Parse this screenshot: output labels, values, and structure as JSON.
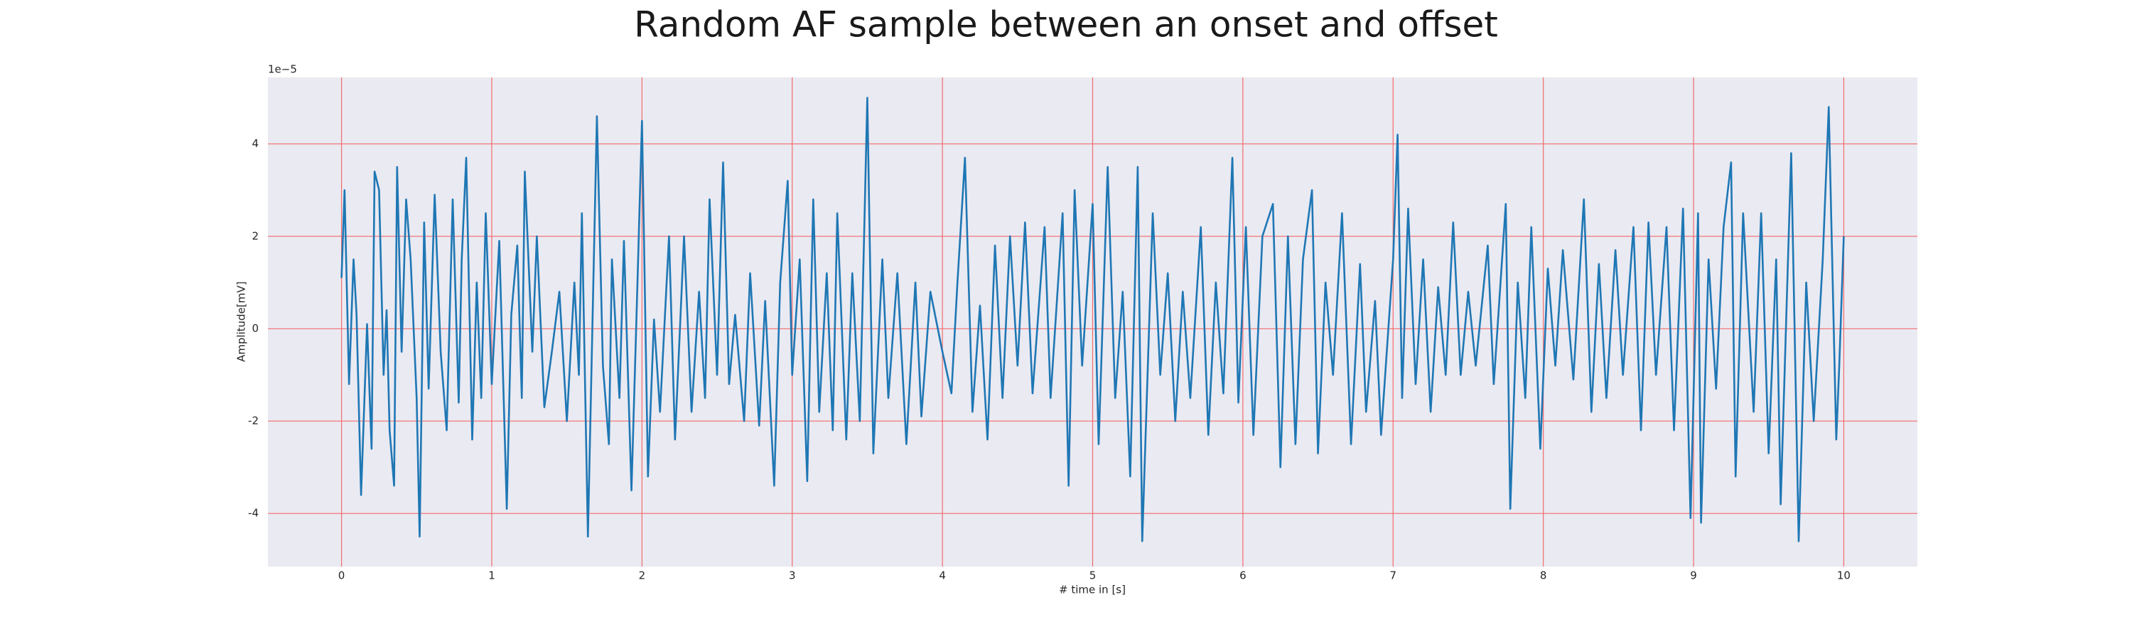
{
  "chart_data": {
    "type": "line",
    "title": "Random AF sample between an onset and offset",
    "x_label": "# time in [s]",
    "y_label": "Amplitude[mV]",
    "y_offset_label": "1e−5",
    "color": "#1f77b4",
    "grid": true,
    "xlim": [
      -0.49,
      10.49
    ],
    "ylim": [
      -5.15,
      5.44
    ],
    "xticks": [
      0,
      1,
      2,
      3,
      4,
      5,
      6,
      7,
      8,
      9,
      10
    ],
    "yticks": [
      -4,
      -2,
      0,
      2,
      4
    ],
    "x": [
      0,
      0.02,
      0.05,
      0.08,
      0.1,
      0.13,
      0.17,
      0.2,
      0.22,
      0.25,
      0.28,
      0.3,
      0.32,
      0.35,
      0.37,
      0.4,
      0.43,
      0.46,
      0.5,
      0.52,
      0.55,
      0.58,
      0.62,
      0.66,
      0.7,
      0.74,
      0.78,
      0.8,
      0.83,
      0.87,
      0.9,
      0.93,
      0.96,
      1.0,
      1.05,
      1.1,
      1.13,
      1.17,
      1.2,
      1.22,
      1.27,
      1.3,
      1.35,
      1.4,
      1.45,
      1.5,
      1.55,
      1.58,
      1.6,
      1.64,
      1.7,
      1.74,
      1.78,
      1.8,
      1.85,
      1.88,
      1.93,
      1.97,
      2.0,
      2.04,
      2.08,
      2.12,
      2.18,
      2.22,
      2.28,
      2.33,
      2.38,
      2.42,
      2.45,
      2.5,
      2.54,
      2.58,
      2.62,
      2.68,
      2.72,
      2.78,
      2.82,
      2.88,
      2.92,
      2.97,
      3.0,
      3.05,
      3.1,
      3.14,
      3.18,
      3.23,
      3.27,
      3.3,
      3.36,
      3.4,
      3.45,
      3.5,
      3.54,
      3.6,
      3.64,
      3.7,
      3.76,
      3.82,
      3.86,
      3.92,
      4.0,
      4.06,
      4.1,
      4.15,
      4.2,
      4.25,
      4.3,
      4.35,
      4.4,
      4.45,
      4.5,
      4.55,
      4.6,
      4.68,
      4.72,
      4.8,
      4.84,
      4.88,
      4.93,
      5.0,
      5.04,
      5.1,
      5.15,
      5.2,
      5.25,
      5.3,
      5.33,
      5.4,
      5.45,
      5.5,
      5.55,
      5.6,
      5.65,
      5.72,
      5.77,
      5.82,
      5.87,
      5.93,
      5.97,
      6.02,
      6.07,
      6.13,
      6.2,
      6.25,
      6.3,
      6.35,
      6.4,
      6.46,
      6.5,
      6.55,
      6.6,
      6.66,
      6.72,
      6.78,
      6.82,
      6.88,
      6.92,
      7.0,
      7.03,
      7.06,
      7.1,
      7.15,
      7.2,
      7.25,
      7.3,
      7.35,
      7.4,
      7.45,
      7.5,
      7.55,
      7.63,
      7.67,
      7.75,
      7.78,
      7.83,
      7.88,
      7.92,
      7.98,
      8.03,
      8.08,
      8.13,
      8.2,
      8.27,
      8.32,
      8.37,
      8.42,
      8.48,
      8.53,
      8.6,
      8.65,
      8.7,
      8.75,
      8.82,
      8.87,
      8.93,
      8.98,
      9.03,
      9.05,
      9.1,
      9.15,
      9.2,
      9.25,
      9.28,
      9.33,
      9.4,
      9.45,
      9.5,
      9.55,
      9.58,
      9.65,
      9.7,
      9.75,
      9.8,
      9.86,
      9.9,
      9.95,
      9.97,
      10.0
    ],
    "values": [
      1.1,
      3.0,
      -1.2,
      1.5,
      0.3,
      -3.6,
      0.1,
      -2.6,
      3.4,
      3.0,
      -1.0,
      0.4,
      -2.2,
      -3.4,
      3.5,
      -0.5,
      2.8,
      1.5,
      -1.5,
      -4.5,
      2.3,
      -1.3,
      2.9,
      -0.5,
      -2.2,
      2.8,
      -1.6,
      1.5,
      3.7,
      -2.4,
      1.0,
      -1.5,
      2.5,
      -1.2,
      1.9,
      -3.9,
      0.3,
      1.8,
      -1.5,
      3.4,
      -0.5,
      2.0,
      -1.7,
      -0.5,
      0.8,
      -2.0,
      1.0,
      -1.0,
      2.5,
      -4.5,
      4.6,
      -0.8,
      -2.5,
      1.5,
      -1.5,
      1.9,
      -3.5,
      1.0,
      4.5,
      -3.2,
      0.2,
      -1.8,
      2.0,
      -2.4,
      2.0,
      -1.8,
      0.8,
      -1.5,
      2.8,
      -1.0,
      3.6,
      -1.2,
      0.3,
      -2.0,
      1.2,
      -2.1,
      0.6,
      -3.4,
      1.0,
      3.2,
      -1.0,
      1.5,
      -3.3,
      2.8,
      -1.8,
      1.2,
      -2.2,
      2.5,
      -2.4,
      1.2,
      -2.0,
      5.0,
      -2.7,
      1.5,
      -1.5,
      1.2,
      -2.5,
      1.0,
      -1.9,
      0.8,
      -0.5,
      -1.4,
      1.0,
      3.7,
      -1.8,
      0.5,
      -2.4,
      1.8,
      -1.5,
      2.0,
      -0.8,
      2.3,
      -1.4,
      2.2,
      -1.5,
      2.5,
      -3.4,
      3.0,
      -0.8,
      2.7,
      -2.5,
      3.5,
      -1.5,
      0.8,
      -3.2,
      3.5,
      -4.6,
      2.5,
      -1.0,
      1.2,
      -2.0,
      0.8,
      -1.5,
      2.2,
      -2.3,
      1.0,
      -1.4,
      3.7,
      -1.6,
      2.2,
      -2.3,
      2.0,
      2.7,
      -3.0,
      2.0,
      -2.5,
      1.5,
      3.0,
      -2.7,
      1.0,
      -1.0,
      2.5,
      -2.5,
      1.4,
      -1.8,
      0.6,
      -2.3,
      1.5,
      4.2,
      -1.5,
      2.6,
      -1.2,
      1.5,
      -1.8,
      0.9,
      -1.0,
      2.3,
      -1.0,
      0.8,
      -0.8,
      1.8,
      -1.2,
      2.7,
      -3.9,
      1.0,
      -1.5,
      2.2,
      -2.6,
      1.3,
      -0.8,
      1.7,
      -1.1,
      2.8,
      -1.8,
      1.4,
      -1.5,
      1.7,
      -1.0,
      2.2,
      -2.2,
      2.3,
      -1.0,
      2.2,
      -2.2,
      2.6,
      -4.1,
      2.5,
      -4.2,
      1.5,
      -1.3,
      2.2,
      3.6,
      -3.2,
      2.5,
      -1.8,
      2.5,
      -2.7,
      1.5,
      -3.8,
      3.8,
      -4.6,
      1.0,
      -2.0,
      1.5,
      4.8,
      -2.4,
      -0.8,
      2.0
    ]
  }
}
